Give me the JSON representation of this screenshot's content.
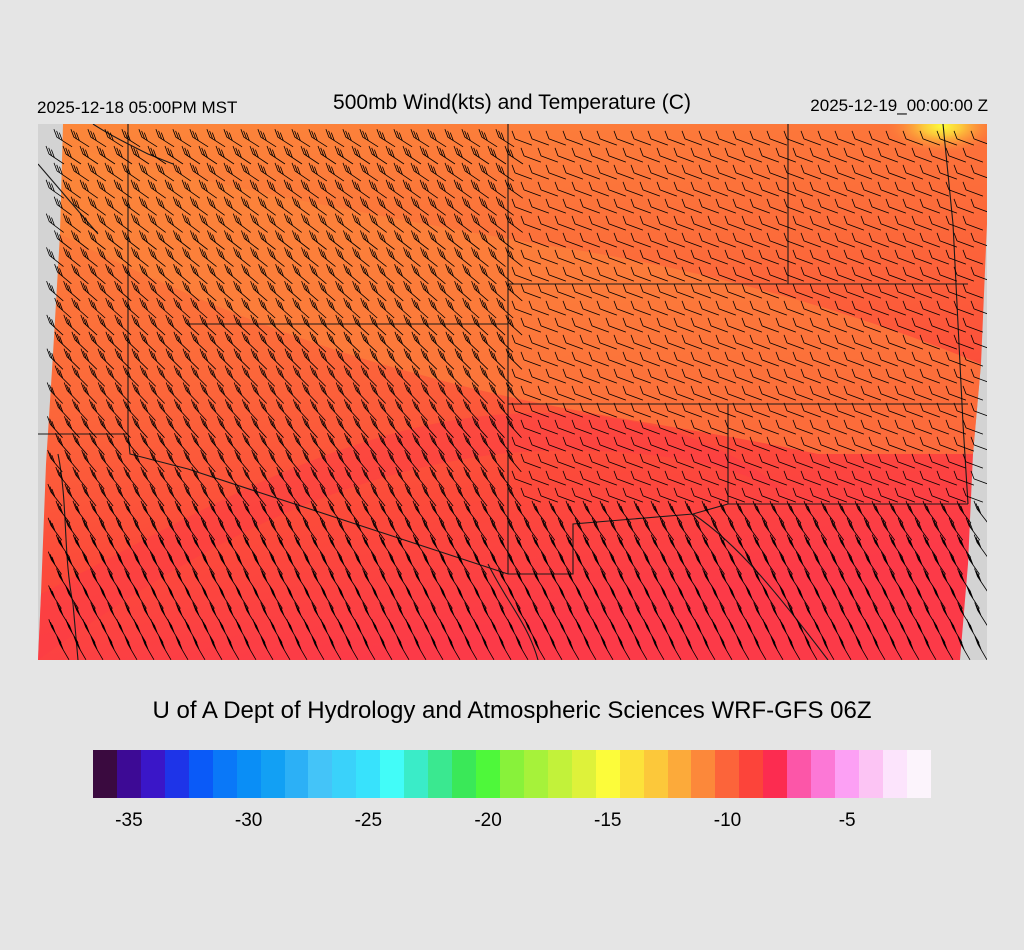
{
  "header": {
    "valid_local": "2025-12-18 05:00PM MST",
    "title": "500mb Wind(kts) and Temperature (C)",
    "valid_utc": "2025-12-19_00:00:00 Z"
  },
  "map": {
    "field": "temperature",
    "region": "southwestern United States",
    "background_color": "#d3d3d3",
    "barb_color": "#000000",
    "border_color": "#1a1a1a"
  },
  "footer": {
    "credit": "U of A Dept of Hydrology and Atmospheric Sciences WRF-GFS 06Z"
  },
  "colorbar": {
    "colors": [
      "#3a0a3f",
      "#3d0a95",
      "#3a16c8",
      "#1e34e8",
      "#0a5af8",
      "#0a78f8",
      "#0a8ef6",
      "#12a0f4",
      "#2cb0f6",
      "#44c4f8",
      "#3ad2fa",
      "#38e2fc",
      "#42fcf8",
      "#3aecc8",
      "#3ae890",
      "#3ae858",
      "#4ef83a",
      "#88f23a",
      "#a6f23a",
      "#c2f23a",
      "#def23a",
      "#fcfc3a",
      "#fce23a",
      "#fcc83a",
      "#fcaa3a",
      "#fc883a",
      "#fc643a",
      "#fc443a",
      "#fc2c50",
      "#fc56a8",
      "#fc78d6",
      "#fca0f4",
      "#fcc4f4",
      "#fce4fc",
      "#fcf4fc"
    ],
    "tick_labels": [
      "-35",
      "-30",
      "-25",
      "-20",
      "-15",
      "-10",
      "-5"
    ],
    "tick_values": [
      -35,
      -30,
      -25,
      -20,
      -15,
      -10,
      -5
    ],
    "min": -36,
    "max": -1
  }
}
